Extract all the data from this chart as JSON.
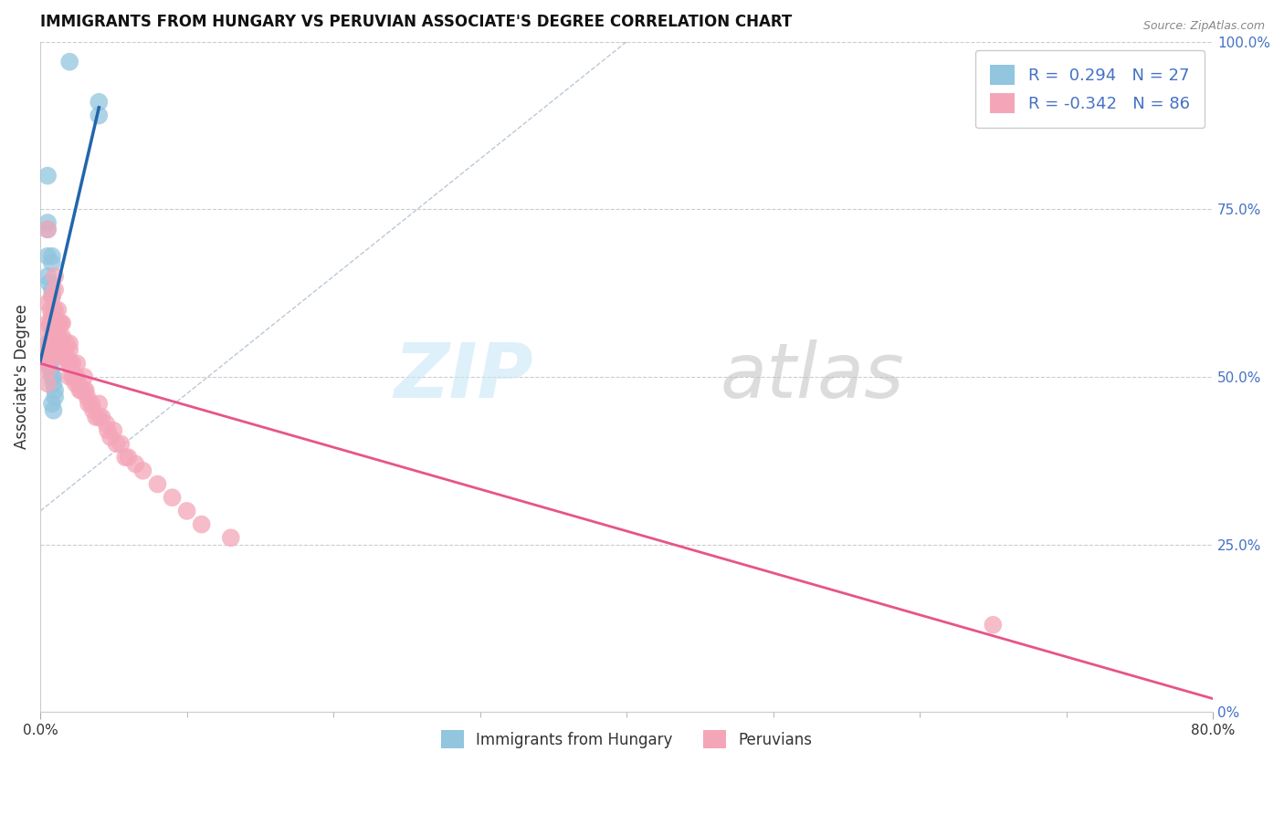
{
  "title": "IMMIGRANTS FROM HUNGARY VS PERUVIAN ASSOCIATE'S DEGREE CORRELATION CHART",
  "source": "Source: ZipAtlas.com",
  "ylabel": "Associate's Degree",
  "right_ytick_labels": [
    "0%",
    "25.0%",
    "50.0%",
    "75.0%",
    "100.0%"
  ],
  "right_ytick_vals": [
    0.0,
    0.25,
    0.5,
    0.75,
    1.0
  ],
  "xmin": 0.0,
  "xmax": 0.8,
  "ymin": 0.0,
  "ymax": 1.0,
  "blue_color": "#92c5de",
  "pink_color": "#f4a6b8",
  "blue_line_color": "#2166ac",
  "pink_line_color": "#e8538a",
  "blue_points_x": [
    0.02,
    0.04,
    0.04,
    0.005,
    0.005,
    0.005,
    0.005,
    0.008,
    0.008,
    0.005,
    0.006,
    0.008,
    0.008,
    0.01,
    0.01,
    0.005,
    0.005,
    0.005,
    0.007,
    0.007,
    0.008,
    0.009,
    0.009,
    0.01,
    0.01,
    0.008,
    0.009
  ],
  "blue_points_y": [
    0.97,
    0.91,
    0.89,
    0.8,
    0.73,
    0.72,
    0.68,
    0.68,
    0.67,
    0.65,
    0.64,
    0.63,
    0.62,
    0.59,
    0.56,
    0.55,
    0.54,
    0.52,
    0.52,
    0.51,
    0.5,
    0.5,
    0.49,
    0.48,
    0.47,
    0.46,
    0.45
  ],
  "pink_points_x": [
    0.005,
    0.005,
    0.005,
    0.005,
    0.005,
    0.005,
    0.005,
    0.005,
    0.005,
    0.007,
    0.007,
    0.007,
    0.008,
    0.008,
    0.008,
    0.008,
    0.009,
    0.009,
    0.009,
    0.009,
    0.01,
    0.01,
    0.01,
    0.01,
    0.01,
    0.01,
    0.01,
    0.012,
    0.012,
    0.012,
    0.013,
    0.013,
    0.013,
    0.014,
    0.014,
    0.015,
    0.015,
    0.015,
    0.016,
    0.016,
    0.017,
    0.018,
    0.018,
    0.019,
    0.02,
    0.02,
    0.02,
    0.02,
    0.021,
    0.022,
    0.022,
    0.023,
    0.024,
    0.025,
    0.025,
    0.026,
    0.027,
    0.028,
    0.03,
    0.03,
    0.031,
    0.032,
    0.033,
    0.035,
    0.036,
    0.038,
    0.04,
    0.04,
    0.042,
    0.045,
    0.046,
    0.048,
    0.05,
    0.052,
    0.055,
    0.058,
    0.06,
    0.065,
    0.07,
    0.08,
    0.09,
    0.1,
    0.11,
    0.13,
    0.65,
    0.005
  ],
  "pink_points_y": [
    0.61,
    0.58,
    0.57,
    0.55,
    0.54,
    0.53,
    0.52,
    0.51,
    0.49,
    0.6,
    0.58,
    0.55,
    0.62,
    0.59,
    0.57,
    0.54,
    0.6,
    0.58,
    0.56,
    0.54,
    0.65,
    0.63,
    0.6,
    0.58,
    0.57,
    0.55,
    0.53,
    0.6,
    0.58,
    0.56,
    0.58,
    0.56,
    0.54,
    0.58,
    0.55,
    0.58,
    0.56,
    0.54,
    0.55,
    0.53,
    0.54,
    0.55,
    0.53,
    0.52,
    0.55,
    0.54,
    0.52,
    0.5,
    0.52,
    0.52,
    0.5,
    0.5,
    0.49,
    0.52,
    0.5,
    0.49,
    0.48,
    0.48,
    0.5,
    0.48,
    0.48,
    0.47,
    0.46,
    0.46,
    0.45,
    0.44,
    0.46,
    0.44,
    0.44,
    0.43,
    0.42,
    0.41,
    0.42,
    0.4,
    0.4,
    0.38,
    0.38,
    0.37,
    0.36,
    0.34,
    0.32,
    0.3,
    0.28,
    0.26,
    0.13,
    0.72
  ],
  "blue_trend_x": [
    0.0,
    0.042
  ],
  "blue_trend_slope": 12.0,
  "blue_trend_intercept": 0.44,
  "pink_trend_x0": 0.0,
  "pink_trend_y0": 0.52,
  "pink_trend_x1": 0.8,
  "pink_trend_y1": 0.02,
  "ref_line_x": [
    0.0,
    0.4
  ],
  "ref_line_y": [
    0.3,
    1.0
  ]
}
